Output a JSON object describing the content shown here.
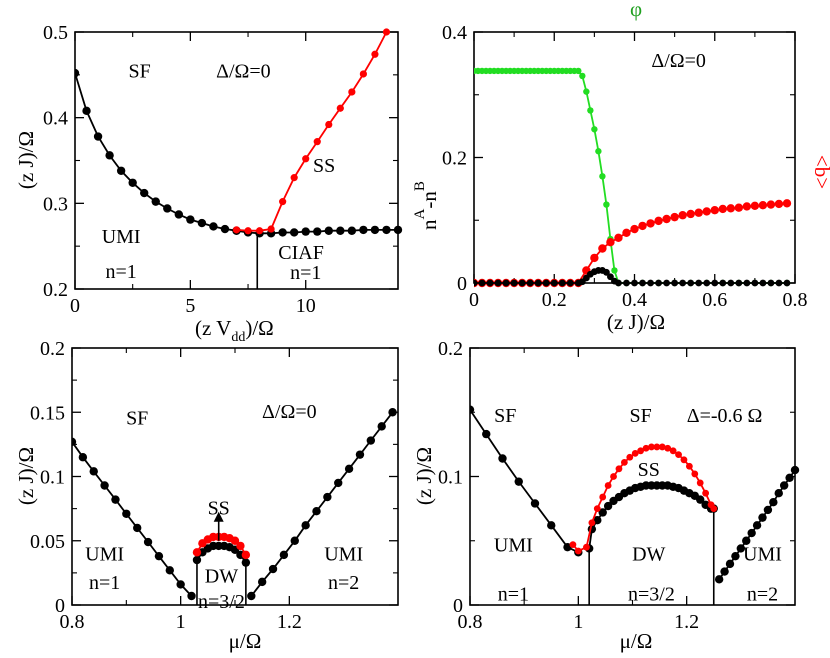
{
  "chart_data": [
    {
      "type": "line",
      "panel": "top-left",
      "xlabel_main": "(z V",
      "xlabel_sub": "dd",
      "xlabel_tail": ")/Ω",
      "ylabel": "(z J)/Ω",
      "xlim": [
        0,
        14
      ],
      "ylim": [
        0.2,
        0.5
      ],
      "xticks": [
        0,
        5,
        10
      ],
      "xtick_labels": [
        "0",
        "5",
        "10"
      ],
      "yticks": [
        0.2,
        0.3,
        0.4,
        0.5
      ],
      "ytick_labels": [
        "0.2",
        "0.3",
        "0.4",
        "0.5"
      ],
      "series": [
        {
          "name": "black",
          "color": "#000000",
          "marker_size": 4.2,
          "x": [
            0.0,
            0.5,
            1.0,
            1.5,
            2.0,
            2.5,
            3.0,
            3.5,
            4.0,
            4.5,
            5.0,
            5.5,
            6.0,
            6.5,
            7.0,
            7.5,
            8.0,
            8.5,
            9.0,
            9.5,
            10.0,
            10.5,
            11.0,
            11.5,
            12.0,
            12.5,
            13.0,
            13.5,
            14.0
          ],
          "y": [
            0.452,
            0.408,
            0.378,
            0.356,
            0.338,
            0.324,
            0.312,
            0.302,
            0.294,
            0.287,
            0.281,
            0.277,
            0.273,
            0.27,
            0.268,
            0.266,
            0.265,
            0.265,
            0.266,
            0.266,
            0.267,
            0.267,
            0.268,
            0.268,
            0.268,
            0.269,
            0.269,
            0.269,
            0.269
          ]
        },
        {
          "name": "red",
          "color": "#ff0000",
          "marker_size": 3.6,
          "x": [
            7.0,
            7.5,
            8.0,
            8.5,
            9.0,
            9.5,
            10.0,
            10.5,
            11.0,
            11.5,
            12.0,
            12.5,
            13.0,
            13.5
          ],
          "y": [
            0.269,
            0.268,
            0.268,
            0.27,
            0.302,
            0.33,
            0.352,
            0.372,
            0.392,
            0.411,
            0.43,
            0.451,
            0.474,
            0.5
          ]
        }
      ],
      "vlines": [
        {
          "x": 7.9,
          "y0": 0.2,
          "y1": 0.266
        }
      ],
      "annotations": [
        {
          "text": "SF",
          "x": 2.8,
          "y": 0.455
        },
        {
          "text": "Δ/Ω=0",
          "x": 7.3,
          "y": 0.455
        },
        {
          "text": "SS",
          "x": 10.8,
          "y": 0.345
        },
        {
          "text": "UMI",
          "x": 2.0,
          "y": 0.262
        },
        {
          "text": "n=1",
          "x": 2.0,
          "y": 0.221
        },
        {
          "text": "CIAF",
          "x": 9.8,
          "y": 0.243
        },
        {
          "text": "n=1",
          "x": 10.0,
          "y": 0.22
        }
      ]
    },
    {
      "type": "line",
      "panel": "top-right",
      "xlabel": "(z J)/Ω",
      "ylabel_n": "n",
      "ylabel_a": "A",
      "ylabel_mid": "-n",
      "ylabel_b": "B",
      "top_label": "φ",
      "right_label": "<b>",
      "xlim": [
        0,
        0.8
      ],
      "ylim": [
        0,
        0.4
      ],
      "xticks": [
        0,
        0.2,
        0.4,
        0.6,
        0.8
      ],
      "xtick_labels": [
        "0",
        "0.2",
        "0.4",
        "0.6",
        "0.8"
      ],
      "yticks": [
        0,
        0.2,
        0.4
      ],
      "ytick_labels": [
        "0",
        "0.2",
        "0.4"
      ],
      "series": [
        {
          "name": "φ",
          "color": "#22dd22",
          "marker_size": 3.2,
          "x": [
            0.0,
            0.01,
            0.02,
            0.03,
            0.04,
            0.05,
            0.06,
            0.07,
            0.08,
            0.09,
            0.1,
            0.11,
            0.12,
            0.13,
            0.14,
            0.15,
            0.16,
            0.17,
            0.18,
            0.19,
            0.2,
            0.21,
            0.22,
            0.23,
            0.24,
            0.25,
            0.26,
            0.27,
            0.28,
            0.29,
            0.3,
            0.31,
            0.32,
            0.33,
            0.34,
            0.35,
            0.36,
            0.38,
            0.42,
            0.46,
            0.5,
            0.54,
            0.58,
            0.62,
            0.66,
            0.7,
            0.74,
            0.78
          ],
          "y": [
            0.338,
            0.338,
            0.338,
            0.338,
            0.338,
            0.338,
            0.338,
            0.338,
            0.338,
            0.338,
            0.338,
            0.338,
            0.338,
            0.338,
            0.338,
            0.338,
            0.338,
            0.338,
            0.338,
            0.338,
            0.338,
            0.338,
            0.338,
            0.338,
            0.338,
            0.338,
            0.338,
            0.33,
            0.305,
            0.275,
            0.245,
            0.21,
            0.17,
            0.125,
            0.07,
            0.02,
            0.0,
            0.0,
            0.0,
            0.0,
            0.0,
            0.0,
            0.0,
            0.0,
            0.0,
            0.0,
            0.0,
            0.0
          ]
        },
        {
          "name": "<b>",
          "color": "#ff0000",
          "marker_size": 4.2,
          "x": [
            0.0,
            0.02,
            0.04,
            0.06,
            0.08,
            0.1,
            0.12,
            0.14,
            0.16,
            0.18,
            0.2,
            0.22,
            0.24,
            0.26,
            0.28,
            0.3,
            0.32,
            0.34,
            0.36,
            0.38,
            0.4,
            0.42,
            0.44,
            0.46,
            0.48,
            0.5,
            0.52,
            0.54,
            0.56,
            0.58,
            0.6,
            0.62,
            0.64,
            0.66,
            0.68,
            0.7,
            0.72,
            0.74,
            0.76,
            0.78
          ],
          "y": [
            0.0,
            0.0,
            0.0,
            0.0,
            0.0,
            0.0,
            0.0,
            0.0,
            0.0,
            0.0,
            0.0,
            0.0,
            0.0,
            0.0,
            0.02,
            0.04,
            0.055,
            0.065,
            0.072,
            0.08,
            0.086,
            0.091,
            0.095,
            0.099,
            0.102,
            0.105,
            0.108,
            0.11,
            0.112,
            0.114,
            0.116,
            0.118,
            0.119,
            0.12,
            0.122,
            0.123,
            0.124,
            0.125,
            0.126,
            0.127
          ]
        },
        {
          "name": "nA-nB",
          "color": "#000000",
          "marker_size": 3.4,
          "x": [
            0.0,
            0.02,
            0.04,
            0.06,
            0.08,
            0.1,
            0.12,
            0.14,
            0.16,
            0.18,
            0.2,
            0.22,
            0.24,
            0.26,
            0.27,
            0.28,
            0.29,
            0.3,
            0.31,
            0.32,
            0.33,
            0.34,
            0.35,
            0.36,
            0.38,
            0.4,
            0.42,
            0.44,
            0.46,
            0.48,
            0.5,
            0.52,
            0.54,
            0.56,
            0.58,
            0.6,
            0.62,
            0.64,
            0.66,
            0.68,
            0.7,
            0.72,
            0.74,
            0.76,
            0.78
          ],
          "y": [
            0.0,
            0.0,
            0.0,
            0.0,
            0.0,
            0.0,
            0.0,
            0.0,
            0.0,
            0.0,
            0.0,
            0.0,
            0.0,
            0.0,
            0.002,
            0.008,
            0.014,
            0.018,
            0.02,
            0.02,
            0.017,
            0.01,
            0.003,
            0.0,
            0.0,
            0.0,
            0.0,
            0.0,
            0.0,
            0.0,
            0.0,
            0.0,
            0.0,
            0.0,
            0.0,
            0.0,
            0.0,
            0.0,
            0.0,
            0.0,
            0.0,
            0.0,
            0.0,
            0.0,
            0.0
          ]
        }
      ],
      "annotations": [
        {
          "text": "Δ/Ω=0",
          "x": 0.51,
          "y": 0.355
        }
      ]
    },
    {
      "type": "line",
      "panel": "bottom-left",
      "xlabel": "μ/Ω",
      "ylabel": "(z J)/Ω",
      "xlim": [
        0.8,
        1.4
      ],
      "ylim": [
        0,
        0.2
      ],
      "xticks": [
        0.8,
        1.0,
        1.2
      ],
      "xtick_labels": [
        "0.8",
        "1",
        "1.2"
      ],
      "yticks": [
        0,
        0.05,
        0.1,
        0.15,
        0.2
      ],
      "ytick_labels": [
        "0",
        "0.05",
        "0.1",
        "0.15",
        "0.2"
      ],
      "series": [
        {
          "name": "left-lobe",
          "color": "#000000",
          "marker_size": 4.2,
          "x": [
            0.8,
            0.82,
            0.84,
            0.86,
            0.88,
            0.9,
            0.92,
            0.94,
            0.96,
            0.98,
            1.0,
            1.02
          ],
          "y": [
            0.127,
            0.115,
            0.104,
            0.093,
            0.082,
            0.071,
            0.06,
            0.049,
            0.038,
            0.027,
            0.016,
            0.007
          ]
        },
        {
          "name": "right-lobe",
          "color": "#000000",
          "marker_size": 4.2,
          "x": [
            1.13,
            1.15,
            1.17,
            1.19,
            1.21,
            1.23,
            1.25,
            1.27,
            1.29,
            1.31,
            1.33,
            1.35,
            1.37,
            1.39
          ],
          "y": [
            0.007,
            0.018,
            0.028,
            0.039,
            0.05,
            0.062,
            0.073,
            0.084,
            0.095,
            0.106,
            0.117,
            0.128,
            0.139,
            0.15
          ]
        },
        {
          "name": "DW",
          "color": "#000000",
          "marker_size": 4.2,
          "x": [
            1.03,
            1.04,
            1.05,
            1.06,
            1.07,
            1.08,
            1.09,
            1.1,
            1.11,
            1.12
          ],
          "y": [
            0.035,
            0.041,
            0.044,
            0.046,
            0.046,
            0.046,
            0.045,
            0.043,
            0.039,
            0.033
          ]
        },
        {
          "name": "SS",
          "color": "#ff0000",
          "marker_size": 4.2,
          "x": [
            1.03,
            1.04,
            1.05,
            1.06,
            1.07,
            1.08,
            1.09,
            1.1,
            1.11,
            1.12
          ],
          "y": [
            0.041,
            0.048,
            0.051,
            0.053,
            0.053,
            0.053,
            0.052,
            0.05,
            0.046,
            0.039
          ]
        }
      ],
      "vlines": [
        {
          "x": 1.03,
          "y0": 0.0,
          "y1": 0.035
        },
        {
          "x": 1.12,
          "y0": 0.0,
          "y1": 0.033
        }
      ],
      "arrow": {
        "x": 1.07,
        "y0": 0.05,
        "y1": 0.071
      },
      "annotations": [
        {
          "text": "SF",
          "x": 0.92,
          "y": 0.146
        },
        {
          "text": "Δ/Ω=0",
          "x": 1.2,
          "y": 0.151
        },
        {
          "text": "SS",
          "x": 1.07,
          "y": 0.076
        },
        {
          "text": "UMI",
          "x": 0.86,
          "y": 0.04
        },
        {
          "text": "n=1",
          "x": 0.86,
          "y": 0.018
        },
        {
          "text": "DW",
          "x": 1.075,
          "y": 0.023
        },
        {
          "text": "n=3/2",
          "x": 1.075,
          "y": 0.003
        },
        {
          "text": "UMI",
          "x": 1.3,
          "y": 0.04
        },
        {
          "text": "n=2",
          "x": 1.3,
          "y": 0.018
        }
      ]
    },
    {
      "type": "line",
      "panel": "bottom-right",
      "xlabel": "μ/Ω",
      "ylabel": "(z J)/Ω",
      "xlim": [
        0.8,
        1.4
      ],
      "ylim": [
        0,
        0.2
      ],
      "xticks": [
        0.8,
        1.0,
        1.2
      ],
      "xtick_labels": [
        "0.8",
        "1",
        "1.2"
      ],
      "yticks": [
        0,
        0.1,
        0.2
      ],
      "ytick_labels": [
        "0",
        "0.1",
        "0.2"
      ],
      "series": [
        {
          "name": "left-lobe",
          "color": "#000000",
          "marker_size": 4.2,
          "x": [
            0.8,
            0.83,
            0.86,
            0.89,
            0.92,
            0.95,
            0.98,
            1.0
          ],
          "y": [
            0.152,
            0.133,
            0.114,
            0.096,
            0.079,
            0.062,
            0.045,
            0.041
          ]
        },
        {
          "name": "DW",
          "color": "#000000",
          "marker_size": 4.2,
          "x": [
            1.02,
            1.025,
            1.035,
            1.045,
            1.055,
            1.065,
            1.075,
            1.085,
            1.095,
            1.105,
            1.115,
            1.125,
            1.135,
            1.145,
            1.155,
            1.165,
            1.175,
            1.185,
            1.195,
            1.205,
            1.215,
            1.225,
            1.235,
            1.245,
            1.25
          ],
          "y": [
            0.044,
            0.059,
            0.066,
            0.072,
            0.077,
            0.081,
            0.084,
            0.087,
            0.089,
            0.091,
            0.092,
            0.093,
            0.093,
            0.093,
            0.093,
            0.093,
            0.092,
            0.091,
            0.089,
            0.087,
            0.085,
            0.082,
            0.078,
            0.075,
            0.075
          ]
        },
        {
          "name": "SS",
          "color": "#ff0000",
          "marker_size": 3.4,
          "x": [
            0.99,
            1.0,
            1.015,
            1.025,
            1.035,
            1.045,
            1.055,
            1.065,
            1.075,
            1.085,
            1.095,
            1.105,
            1.115,
            1.125,
            1.135,
            1.145,
            1.155,
            1.165,
            1.175,
            1.185,
            1.195,
            1.205,
            1.215,
            1.225,
            1.235,
            1.245,
            1.25
          ],
          "y": [
            0.047,
            0.042,
            0.045,
            0.064,
            0.075,
            0.084,
            0.093,
            0.1,
            0.106,
            0.111,
            0.115,
            0.118,
            0.12,
            0.122,
            0.123,
            0.123,
            0.123,
            0.122,
            0.12,
            0.117,
            0.113,
            0.108,
            0.102,
            0.095,
            0.087,
            0.078,
            0.075
          ]
        },
        {
          "name": "right-lobe",
          "color": "#000000",
          "marker_size": 4.2,
          "x": [
            1.26,
            1.27,
            1.28,
            1.29,
            1.3,
            1.31,
            1.32,
            1.33,
            1.34,
            1.35,
            1.36,
            1.37,
            1.38,
            1.39,
            1.4
          ],
          "y": [
            0.02,
            0.026,
            0.032,
            0.038,
            0.044,
            0.05,
            0.056,
            0.062,
            0.068,
            0.074,
            0.08,
            0.087,
            0.093,
            0.099,
            0.105
          ]
        }
      ],
      "vlines": [
        {
          "x": 1.02,
          "y0": 0.0,
          "y1": 0.044
        },
        {
          "x": 1.25,
          "y0": 0.0,
          "y1": 0.075
        }
      ],
      "annotations": [
        {
          "text": "SF",
          "x": 0.865,
          "y": 0.148
        },
        {
          "text": "SF",
          "x": 1.115,
          "y": 0.148
        },
        {
          "text": "Δ=-0.6 Ω",
          "x": 1.27,
          "y": 0.148
        },
        {
          "text": "SS",
          "x": 1.13,
          "y": 0.106
        },
        {
          "text": "UMI",
          "x": 0.88,
          "y": 0.047
        },
        {
          "text": "n=1",
          "x": 0.88,
          "y": 0.009
        },
        {
          "text": "DW",
          "x": 1.13,
          "y": 0.04
        },
        {
          "text": "n=3/2",
          "x": 1.135,
          "y": 0.009
        },
        {
          "text": "UMI",
          "x": 1.34,
          "y": 0.04
        },
        {
          "text": "n=2",
          "x": 1.34,
          "y": 0.009
        }
      ]
    }
  ]
}
